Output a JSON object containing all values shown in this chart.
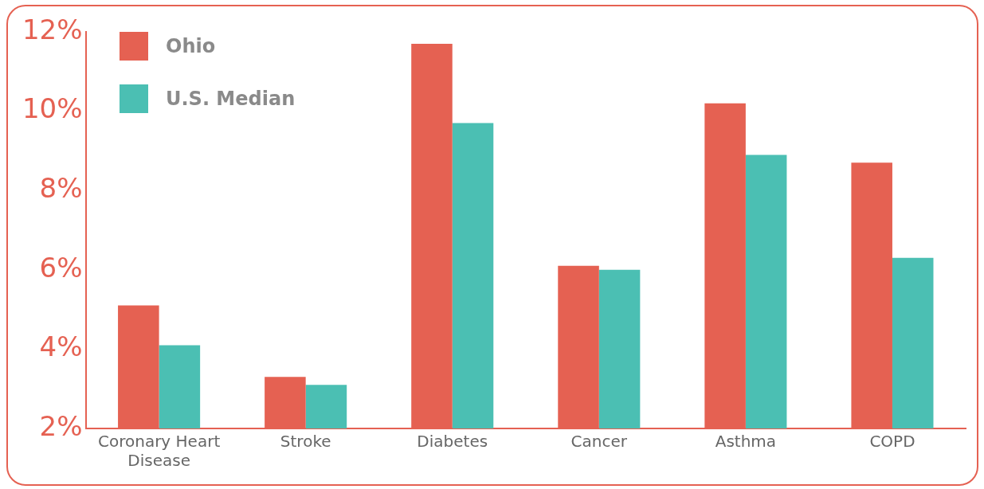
{
  "chart_data": {
    "type": "bar",
    "categories": [
      "Coronary Heart Disease",
      "Stroke",
      "Diabetes",
      "Cancer",
      "Asthma",
      "COPD"
    ],
    "series": [
      {
        "name": "Ohio",
        "color": "#e56152",
        "values": [
          5.1,
          3.3,
          11.7,
          6.1,
          10.2,
          8.7
        ]
      },
      {
        "name": "U.S. Median",
        "color": "#4bbfb3",
        "values": [
          4.1,
          3.1,
          9.7,
          6.0,
          8.9,
          6.3
        ]
      }
    ],
    "ylim": [
      2,
      12
    ],
    "yticks": [
      {
        "value": 2,
        "label": "2%"
      },
      {
        "value": 4,
        "label": "4%"
      },
      {
        "value": 6,
        "label": "6%"
      },
      {
        "value": 8,
        "label": "8%"
      },
      {
        "value": 10,
        "label": "10%"
      },
      {
        "value": 12,
        "label": "12%"
      }
    ],
    "grid": false,
    "legend": "top left"
  }
}
